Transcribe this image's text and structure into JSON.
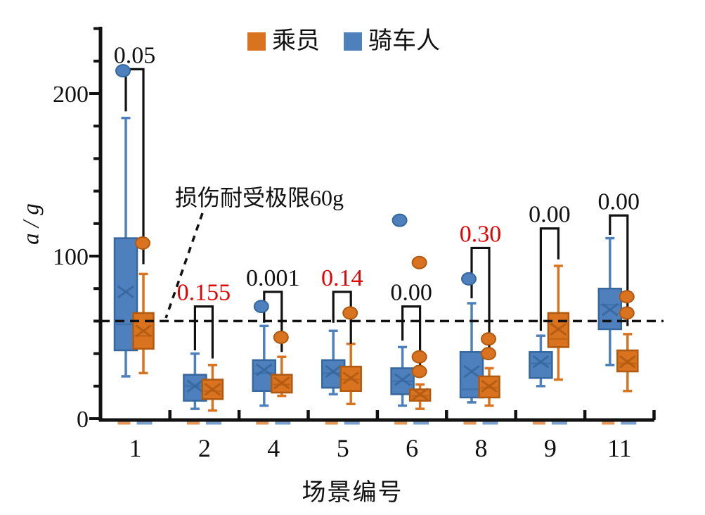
{
  "figure": {
    "y_axis_title": "a / g",
    "x_axis_title": "场景编号",
    "reference_label": "损伤耐受极限60g"
  },
  "chart_data": {
    "type": "boxplot",
    "title": "",
    "xlabel": "场景编号",
    "ylabel": "a / g",
    "units": "g",
    "ylim": [
      0,
      240
    ],
    "yticks_major": [
      0,
      100,
      200
    ],
    "ytick_minor_step": 20,
    "grid": false,
    "legend_position": "top-center",
    "categories": [
      "1",
      "2",
      "4",
      "5",
      "6",
      "8",
      "9",
      "11"
    ],
    "legend": [
      {
        "name": "乘员",
        "series": "passenger",
        "color": "#d9731f"
      },
      {
        "name": "骑车人",
        "series": "cyclist",
        "color": "#4d80bc"
      }
    ],
    "reference_line": {
      "value": 60,
      "label": "损伤耐受极限60g",
      "style": "dashed",
      "color": "#111111"
    },
    "colors": {
      "cyclist_fill": "#4d80bc",
      "cyclist_edge": "#36679e",
      "passenger_fill": "#d9731f",
      "passenger_edge": "#b05a11",
      "axis": "#111111",
      "p_black": "#111111",
      "p_red": "#e60000"
    },
    "groups": [
      {
        "category": "1",
        "p_value": "0.05",
        "p_value_color": "black",
        "bracket": {
          "top": 215,
          "left_end": 189,
          "right_end": 95
        },
        "cyclist": {
          "whisker_low": 26,
          "q1": 42,
          "median": 58,
          "mean": 78,
          "q3": 111,
          "whisker_high": 185,
          "outliers": [
            214
          ]
        },
        "passenger": {
          "whisker_low": 28,
          "q1": 43,
          "median": 51,
          "mean": 54,
          "q3": 65,
          "whisker_high": 89,
          "outliers": [
            108
          ]
        }
      },
      {
        "category": "2",
        "p_value": "0.155",
        "p_value_color": "red",
        "bracket": {
          "top": 69,
          "left_end": 42,
          "right_end": 37
        },
        "cyclist": {
          "whisker_low": 6,
          "q1": 11,
          "median": 20,
          "mean": 20,
          "q3": 27,
          "whisker_high": 40,
          "outliers": []
        },
        "passenger": {
          "whisker_low": 5,
          "q1": 12,
          "median": 17,
          "mean": 18,
          "q3": 24,
          "whisker_high": 33,
          "outliers": []
        }
      },
      {
        "category": "4",
        "p_value": "0.001",
        "p_value_color": "black",
        "bracket": {
          "top": 78,
          "left_end": 59,
          "right_end": 41
        },
        "cyclist": {
          "whisker_low": 8,
          "q1": 17,
          "median": 28,
          "mean": 30,
          "q3": 36,
          "whisker_high": 57,
          "outliers": [
            69
          ]
        },
        "passenger": {
          "whisker_low": 14,
          "q1": 16,
          "median": 21,
          "mean": 22,
          "q3": 27,
          "whisker_high": 38,
          "outliers": [
            50
          ]
        }
      },
      {
        "category": "5",
        "p_value": "0.14",
        "p_value_color": "red",
        "bracket": {
          "top": 78,
          "left_end": 59,
          "right_end": 46
        },
        "cyclist": {
          "whisker_low": 15,
          "q1": 19,
          "median": 28,
          "mean": 29,
          "q3": 36,
          "whisker_high": 54,
          "outliers": []
        },
        "passenger": {
          "whisker_low": 9,
          "q1": 17,
          "median": 24,
          "mean": 25,
          "q3": 32,
          "whisker_high": 46,
          "outliers": [
            65
          ]
        }
      },
      {
        "category": "6",
        "p_value": "0.00",
        "p_value_color": "black",
        "bracket": {
          "top": 69,
          "left_end": 48,
          "right_end": 28
        },
        "cyclist": {
          "whisker_low": 8,
          "q1": 15,
          "median": 23,
          "mean": 24,
          "q3": 31,
          "whisker_high": 44,
          "outliers": [
            122
          ]
        },
        "passenger": {
          "whisker_low": 6,
          "q1": 11,
          "median": 14,
          "mean": 15,
          "q3": 18,
          "whisker_high": 21,
          "outliers": [
            96,
            38,
            29
          ]
        }
      },
      {
        "category": "8",
        "p_value": "0.30",
        "p_value_color": "red",
        "bracket": {
          "top": 105,
          "left_end": 74,
          "right_end": 41
        },
        "cyclist": {
          "whisker_low": 10,
          "q1": 13,
          "median": 18,
          "mean": 29,
          "q3": 41,
          "whisker_high": 71,
          "outliers": [
            86
          ]
        },
        "passenger": {
          "whisker_low": 8,
          "q1": 13,
          "median": 19,
          "mean": 20,
          "q3": 26,
          "whisker_high": 31,
          "outliers": [
            49,
            40
          ]
        }
      },
      {
        "category": "9",
        "p_value": "0.00",
        "p_value_color": "black",
        "bracket": {
          "top": 117,
          "left_end": 54,
          "right_end": 98
        },
        "cyclist": {
          "whisker_low": 20,
          "q1": 25,
          "median": 34,
          "mean": 35,
          "q3": 41,
          "whisker_high": 51,
          "outliers": []
        },
        "passenger": {
          "whisker_low": 24,
          "q1": 44,
          "median": 49,
          "mean": 55,
          "q3": 65,
          "whisker_high": 94,
          "outliers": []
        }
      },
      {
        "category": "11",
        "p_value": "0.00",
        "p_value_color": "black",
        "bracket": {
          "top": 125,
          "left_end": 113,
          "right_end": 57
        },
        "cyclist": {
          "whisker_low": 33,
          "q1": 55,
          "median": 70,
          "mean": 67,
          "q3": 80,
          "whisker_high": 111,
          "outliers": []
        },
        "passenger": {
          "whisker_low": 17,
          "q1": 29,
          "median": 34,
          "mean": 35,
          "q3": 42,
          "whisker_high": 52,
          "outliers": [
            75,
            65
          ]
        }
      }
    ]
  }
}
